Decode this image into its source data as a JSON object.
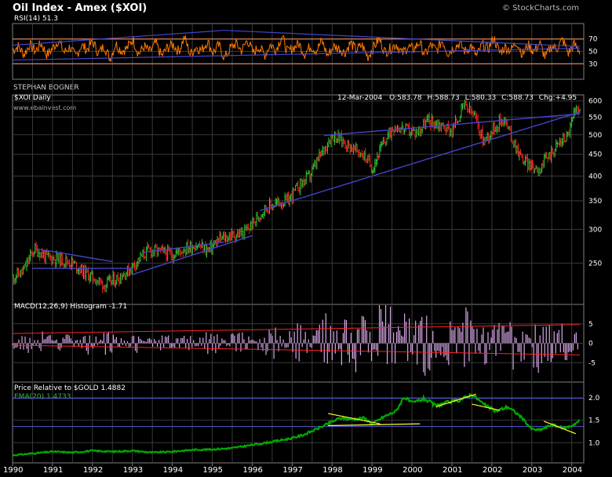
{
  "header": {
    "title": "Oil Index - Amex ($XOI)",
    "credit": "© StockCharts.com",
    "author": "STEPHAN BOGNER",
    "website": "www.ebainvest.com"
  },
  "colors": {
    "background": "#000000",
    "grid": "#3a3a3a",
    "panel_border": "#7f7f7f",
    "rsi_line": "#ff7a00",
    "rsi_levels": "#ff9966",
    "price_up": "#33cc33",
    "price_down": "#ff2222",
    "trendline": "#4444cc",
    "macd_hist": "#d9a7e8",
    "macd_env": "#ff2222",
    "relative_line": "#00aa00",
    "relative_ema": "#66cc66",
    "relative_trend": "#ffff33",
    "relative_hline": "#5555dd"
  },
  "chart_data": [
    {
      "panel": "rsi",
      "type": "line",
      "label": "RSI(14) 51.3",
      "ylim": [
        5,
        95
      ],
      "yticks": [
        30,
        50,
        70
      ],
      "levels": [
        30,
        70
      ],
      "x_start": 1990.0,
      "x_end": 2004.2,
      "values": [
        52,
        58,
        45,
        61,
        50,
        63,
        44,
        55,
        68,
        48,
        57,
        41,
        60,
        53,
        66,
        47,
        59,
        38,
        62,
        51,
        55,
        70,
        46,
        58,
        49,
        64,
        42,
        56,
        61,
        50,
        73,
        45,
        57,
        52,
        66,
        48,
        60,
        39,
        55,
        63,
        51,
        69,
        47,
        58,
        44,
        61,
        53,
        75,
        49,
        56,
        62,
        46,
        59,
        51,
        67,
        43,
        58,
        55,
        48,
        64,
        52,
        60,
        41,
        57,
        70,
        49,
        55,
        62,
        46,
        58,
        53,
        65,
        44,
        60,
        51,
        68,
        47,
        56,
        63,
        50,
        59,
        42,
        61,
        54,
        72,
        48,
        57,
        52,
        66,
        45,
        60,
        50,
        63,
        40,
        58,
        55,
        69,
        47,
        61,
        51
      ],
      "trendlines": [
        {
          "from": [
            1990.0,
            60
          ],
          "to": [
            1995.3,
            84
          ]
        },
        {
          "from": [
            1995.3,
            84
          ],
          "to": [
            2004.2,
            58
          ]
        },
        {
          "from": [
            1990.0,
            36
          ],
          "to": [
            2004.2,
            55
          ]
        }
      ]
    },
    {
      "panel": "price",
      "type": "ohlc",
      "label": "$XOI Daily",
      "quote": {
        "date": "12-Mar-2004",
        "open_label": "O:",
        "open": "583.78",
        "high_label": "H:",
        "high": "588.73",
        "low_label": "L:",
        "low": "580.33",
        "close_label": "C:",
        "close": "588.73",
        "chg_label": "Chg:",
        "chg": "+4.95"
      },
      "y_scale": "log",
      "ylim": [
        200,
        620
      ],
      "yticks": [
        250,
        300,
        350,
        400,
        450,
        500,
        550,
        600
      ],
      "series": [
        [
          1990.0,
          232
        ],
        [
          1990.25,
          238
        ],
        [
          1990.55,
          270
        ],
        [
          1990.85,
          258
        ],
        [
          1991.2,
          255
        ],
        [
          1991.5,
          250
        ],
        [
          1991.8,
          238
        ],
        [
          1992.05,
          230
        ],
        [
          1992.3,
          222
        ],
        [
          1992.55,
          228
        ],
        [
          1992.9,
          240
        ],
        [
          1993.1,
          252
        ],
        [
          1993.4,
          268
        ],
        [
          1993.7,
          266
        ],
        [
          1994.0,
          262
        ],
        [
          1994.3,
          270
        ],
        [
          1994.6,
          276
        ],
        [
          1994.9,
          268
        ],
        [
          1995.2,
          285
        ],
        [
          1995.5,
          290
        ],
        [
          1995.8,
          294
        ],
        [
          1996.05,
          312
        ],
        [
          1996.3,
          335
        ],
        [
          1996.6,
          345
        ],
        [
          1996.9,
          350
        ],
        [
          1997.15,
          378
        ],
        [
          1997.45,
          402
        ],
        [
          1997.75,
          455
        ],
        [
          1998.0,
          500
        ],
        [
          1998.25,
          485
        ],
        [
          1998.5,
          465
        ],
        [
          1998.8,
          448
        ],
        [
          1999.0,
          418
        ],
        [
          1999.25,
          470
        ],
        [
          1999.55,
          525
        ],
        [
          1999.8,
          515
        ],
        [
          2000.1,
          505
        ],
        [
          2000.4,
          540
        ],
        [
          2000.7,
          528
        ],
        [
          2001.0,
          510
        ],
        [
          2001.3,
          585
        ],
        [
          2001.55,
          555
        ],
        [
          2001.8,
          482
        ],
        [
          2002.05,
          520
        ],
        [
          2002.3,
          548
        ],
        [
          2002.5,
          490
        ],
        [
          2002.75,
          440
        ],
        [
          2003.0,
          420
        ],
        [
          2003.2,
          418
        ],
        [
          2003.45,
          450
        ],
        [
          2003.7,
          480
        ],
        [
          2003.9,
          500
        ],
        [
          2004.05,
          555
        ],
        [
          2004.2,
          588
        ]
      ],
      "trendlines": [
        {
          "from": [
            1990.6,
            270
          ],
          "to": [
            1992.5,
            252
          ]
        },
        {
          "from": [
            1990.5,
            243
          ],
          "to": [
            1993.0,
            243
          ]
        },
        {
          "from": [
            1993.3,
            265
          ],
          "to": [
            1995.3,
            280
          ]
        },
        {
          "from": [
            1993.0,
            235
          ],
          "to": [
            1996.0,
            290
          ]
        },
        {
          "from": [
            1996.2,
            332
          ],
          "to": [
            2004.2,
            565
          ]
        },
        {
          "from": [
            1997.8,
            498
          ],
          "to": [
            2004.2,
            560
          ]
        }
      ]
    },
    {
      "panel": "macd",
      "type": "bar",
      "label": "MACD(12,26,9) Histogram -1.71",
      "ylim": [
        -10,
        10
      ],
      "yticks": [
        -5,
        0,
        5
      ],
      "values": [
        1.5,
        -2,
        2.5,
        -1,
        3,
        -2.5,
        1,
        2,
        -3,
        1.5,
        -1.5,
        2.8,
        -2,
        1,
        3.5,
        -2.5,
        1.8,
        -1,
        2.2,
        -3,
        1,
        2.5,
        -1.5,
        3,
        -2,
        1.5,
        -2.8,
        2,
        1,
        -1.5,
        3.2,
        -2.5,
        1.5,
        -1,
        2.8,
        -3.5,
        2,
        1.2,
        -2,
        3.8,
        -4,
        2.5,
        -1.5,
        4.5,
        -5,
        3,
        -2,
        5.5,
        -6,
        3.5,
        -3,
        4,
        -4.5,
        6,
        -5.5,
        3,
        -2.5,
        7,
        -8,
        4,
        -3.5,
        5,
        -4,
        6.5,
        -6,
        3.5,
        -2,
        4.5,
        -5.5,
        3,
        -7,
        5,
        -3,
        4,
        -2.5,
        3.5,
        -3,
        4.5,
        -2,
        3,
        -1.5,
        5,
        -4,
        3.5,
        -2.5,
        4,
        -3,
        2.5,
        -2
      ],
      "envelope_upper": [
        [
          1990.0,
          2.5
        ],
        [
          2004.2,
          4.8
        ]
      ],
      "envelope_lower": [
        [
          1990.0,
          -0.5
        ],
        [
          2004.2,
          -3.0
        ]
      ]
    },
    {
      "panel": "relative",
      "type": "line",
      "label": "Price Relative to $GOLD 1.4882",
      "ema_label": "EMA(20) 1.4733",
      "ylim": [
        0.55,
        2.35
      ],
      "yticks": [
        1.0,
        1.5,
        2.0
      ],
      "series": [
        [
          1990.0,
          0.72
        ],
        [
          1990.5,
          0.76
        ],
        [
          1991.0,
          0.8
        ],
        [
          1991.5,
          0.78
        ],
        [
          1992.0,
          0.82
        ],
        [
          1992.5,
          0.8
        ],
        [
          1993.0,
          0.82
        ],
        [
          1993.5,
          0.78
        ],
        [
          1994.0,
          0.8
        ],
        [
          1994.5,
          0.84
        ],
        [
          1995.0,
          0.85
        ],
        [
          1995.5,
          0.88
        ],
        [
          1996.0,
          0.95
        ],
        [
          1996.5,
          1.02
        ],
        [
          1997.0,
          1.1
        ],
        [
          1997.3,
          1.18
        ],
        [
          1997.6,
          1.3
        ],
        [
          1997.9,
          1.42
        ],
        [
          1998.2,
          1.55
        ],
        [
          1998.5,
          1.52
        ],
        [
          1998.8,
          1.55
        ],
        [
          1999.0,
          1.42
        ],
        [
          1999.3,
          1.58
        ],
        [
          1999.6,
          1.7
        ],
        [
          1999.8,
          2.02
        ],
        [
          2000.0,
          1.88
        ],
        [
          2000.3,
          1.98
        ],
        [
          2000.6,
          1.82
        ],
        [
          2000.9,
          1.9
        ],
        [
          2001.2,
          1.95
        ],
        [
          2001.5,
          2.08
        ],
        [
          2001.8,
          1.85
        ],
        [
          2002.1,
          1.7
        ],
        [
          2002.4,
          1.8
        ],
        [
          2002.7,
          1.6
        ],
        [
          2003.0,
          1.3
        ],
        [
          2003.2,
          1.28
        ],
        [
          2003.5,
          1.4
        ],
        [
          2003.8,
          1.32
        ],
        [
          2004.0,
          1.38
        ],
        [
          2004.2,
          1.49
        ]
      ],
      "hlines": [
        1.99,
        1.36
      ],
      "trendlines": [
        {
          "from": [
            1997.9,
            1.65
          ],
          "to": [
            1999.2,
            1.42
          ]
        },
        {
          "from": [
            1997.9,
            1.38
          ],
          "to": [
            2000.2,
            1.42
          ]
        },
        {
          "from": [
            2000.6,
            1.8
          ],
          "to": [
            2001.6,
            2.08
          ]
        },
        {
          "from": [
            2001.5,
            1.86
          ],
          "to": [
            2002.2,
            1.72
          ]
        },
        {
          "from": [
            2003.3,
            1.48
          ],
          "to": [
            2004.1,
            1.2
          ]
        }
      ]
    },
    {
      "panel": "xaxis",
      "type": "axis",
      "xticks": [
        "1990",
        "1991",
        "1992",
        "1993",
        "1994",
        "1995",
        "1996",
        "1997",
        "1998",
        "1999",
        "2000",
        "2001",
        "2002",
        "2003",
        "2004"
      ],
      "xlim": [
        1990.0,
        2004.3
      ]
    }
  ]
}
